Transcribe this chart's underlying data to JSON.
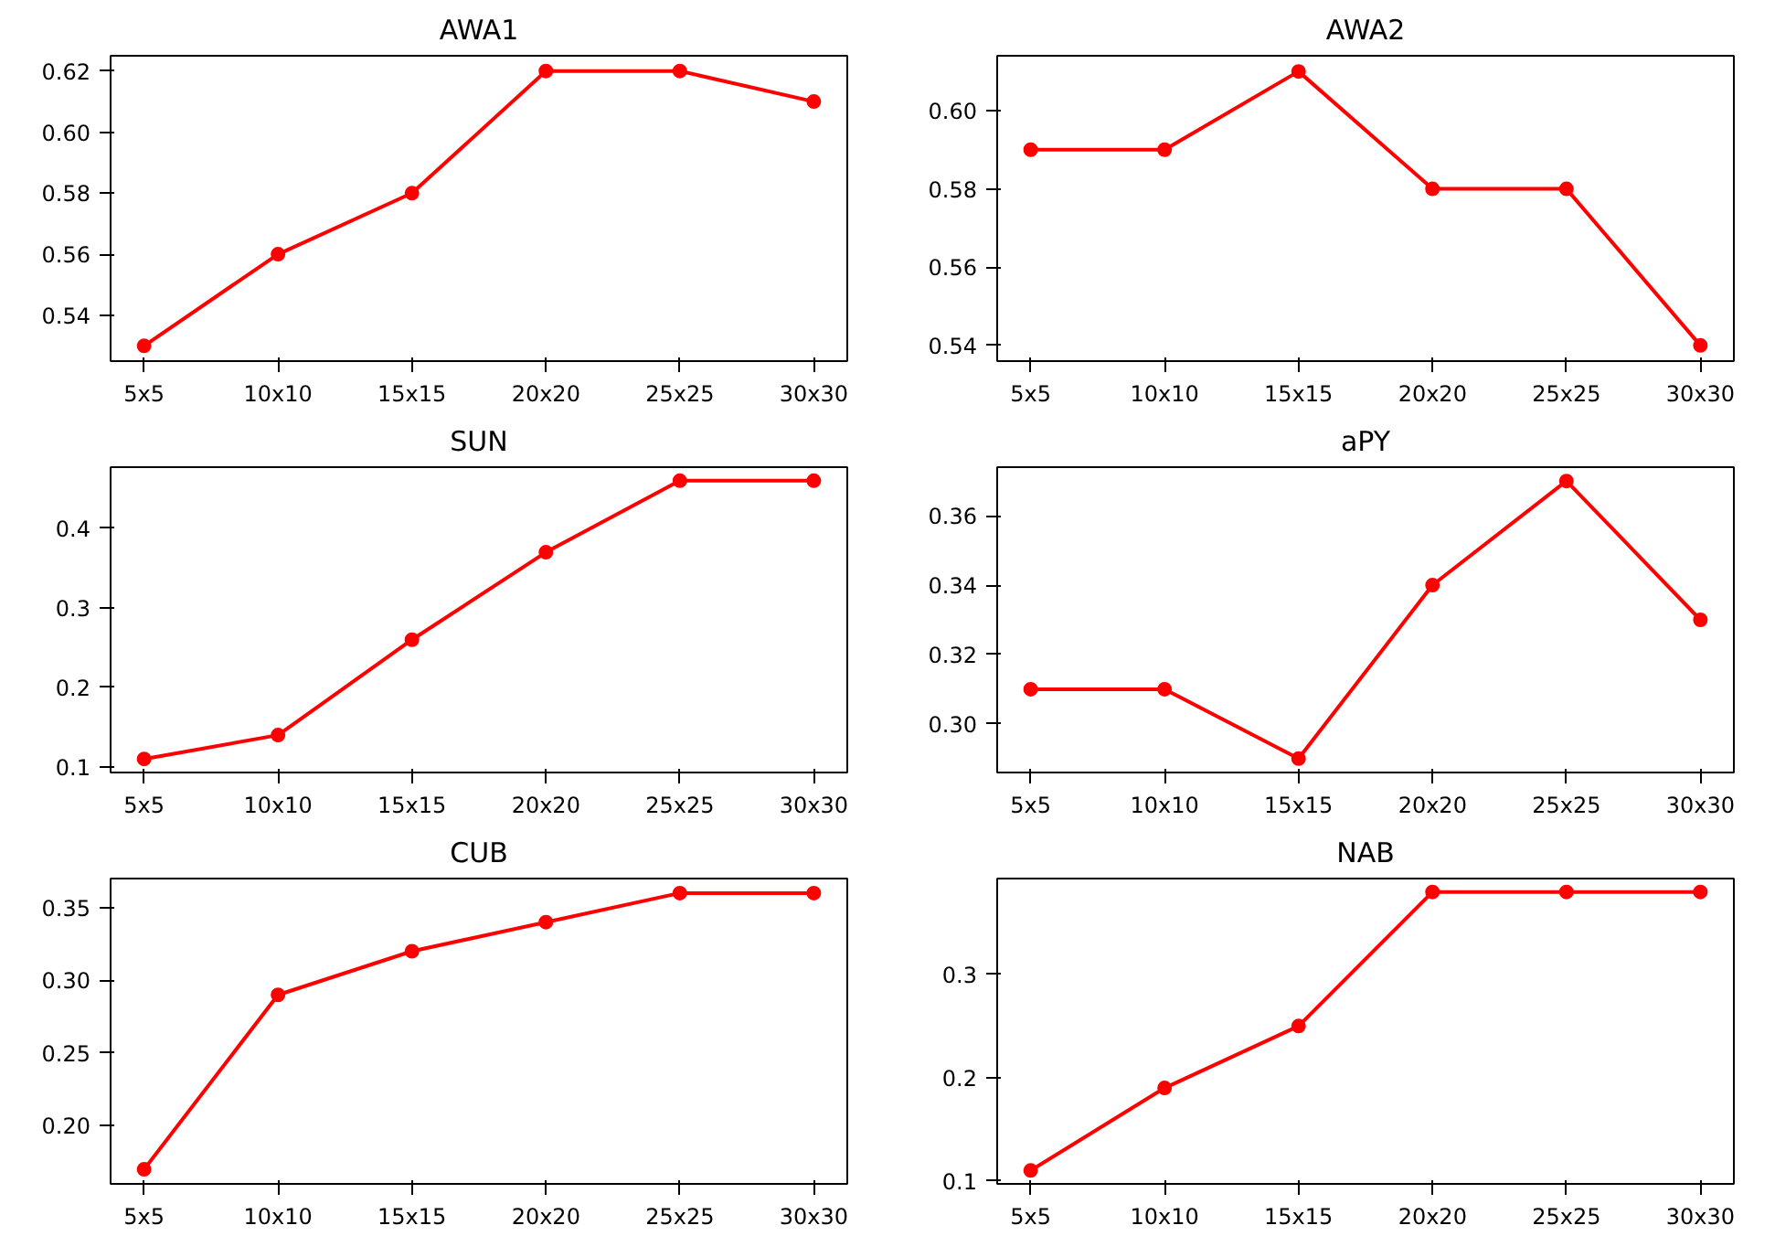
{
  "chart_data": [
    {
      "type": "line",
      "title": "AWA1",
      "categories": [
        "5x5",
        "10x10",
        "15x15",
        "20x20",
        "25x25",
        "30x30"
      ],
      "series": [
        {
          "color": "#ff0000",
          "values": [
            0.53,
            0.56,
            0.58,
            0.62,
            0.62,
            0.61
          ]
        }
      ],
      "ylim": [
        0.525,
        0.625
      ],
      "yticks": [
        0.54,
        0.56,
        0.58,
        {
          "value": 0.6,
          "label": "0.60"
        },
        0.62
      ],
      "marker": "circle",
      "grid": false
    },
    {
      "type": "line",
      "title": "AWA2",
      "categories": [
        "5x5",
        "10x10",
        "15x15",
        "20x20",
        "25x25",
        "30x30"
      ],
      "series": [
        {
          "color": "#ff0000",
          "values": [
            0.59,
            0.59,
            0.61,
            0.58,
            0.58,
            0.54
          ]
        }
      ],
      "ylim": [
        0.536,
        0.614
      ],
      "yticks": [
        0.54,
        0.56,
        0.58,
        {
          "value": 0.6,
          "label": "0.60"
        }
      ],
      "marker": "circle",
      "grid": false
    },
    {
      "type": "line",
      "title": "SUN",
      "categories": [
        "5x5",
        "10x10",
        "15x15",
        "20x20",
        "25x25",
        "30x30"
      ],
      "series": [
        {
          "color": "#ff0000",
          "values": [
            0.11,
            0.14,
            0.26,
            0.37,
            0.46,
            0.46
          ]
        }
      ],
      "ylim": [
        0.093,
        0.477
      ],
      "yticks": [
        0.1,
        0.2,
        0.3,
        0.4
      ],
      "marker": "circle",
      "grid": false
    },
    {
      "type": "line",
      "title": "aPY",
      "categories": [
        "5x5",
        "10x10",
        "15x15",
        "20x20",
        "25x25",
        "30x30"
      ],
      "series": [
        {
          "color": "#ff0000",
          "values": [
            0.31,
            0.31,
            0.29,
            0.34,
            0.37,
            0.33
          ]
        }
      ],
      "ylim": [
        0.286,
        0.374
      ],
      "yticks": [
        {
          "value": 0.3,
          "label": "0.30"
        },
        0.32,
        0.34,
        0.36
      ],
      "marker": "circle",
      "grid": false
    },
    {
      "type": "line",
      "title": "CUB",
      "categories": [
        "5x5",
        "10x10",
        "15x15",
        "20x20",
        "25x25",
        "30x30"
      ],
      "series": [
        {
          "color": "#ff0000",
          "values": [
            0.17,
            0.29,
            0.32,
            0.34,
            0.36,
            0.36
          ]
        }
      ],
      "ylim": [
        0.16,
        0.37
      ],
      "yticks": [
        {
          "value": 0.2,
          "label": "0.20"
        },
        0.25,
        {
          "value": 0.3,
          "label": "0.30"
        },
        0.35
      ],
      "marker": "circle",
      "grid": false
    },
    {
      "type": "line",
      "title": "NAB",
      "categories": [
        "5x5",
        "10x10",
        "15x15",
        "20x20",
        "25x25",
        "30x30"
      ],
      "series": [
        {
          "color": "#ff0000",
          "values": [
            0.11,
            0.19,
            0.25,
            0.38,
            0.38,
            0.38
          ]
        }
      ],
      "ylim": [
        0.097,
        0.393
      ],
      "yticks": [
        0.1,
        0.2,
        0.3
      ],
      "marker": "circle",
      "grid": false
    }
  ]
}
